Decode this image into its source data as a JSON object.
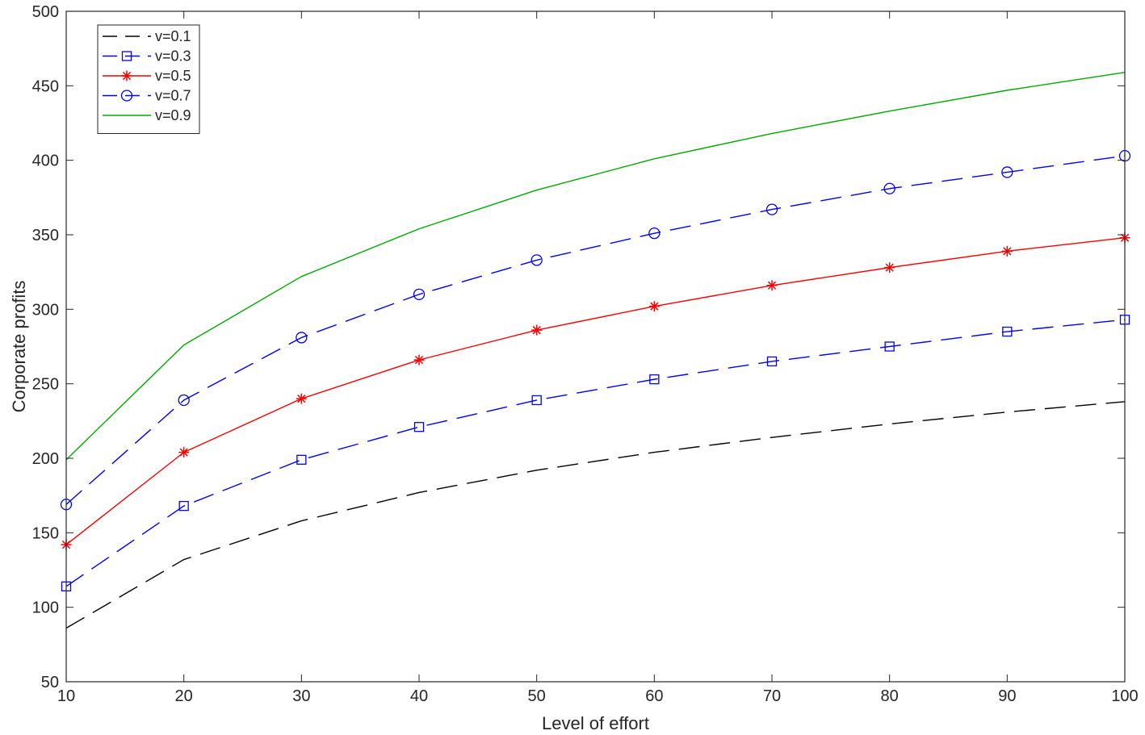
{
  "chart_data": {
    "type": "line",
    "title": "",
    "xlabel": "Level of effort",
    "ylabel": "Corporate profits",
    "xlim": [
      10,
      100
    ],
    "ylim": [
      50,
      500
    ],
    "xticks": [
      10,
      20,
      30,
      40,
      50,
      60,
      70,
      80,
      90,
      100
    ],
    "yticks": [
      50,
      100,
      150,
      200,
      250,
      300,
      350,
      400,
      450,
      500
    ],
    "grid": false,
    "legend_position": "top-left",
    "x": [
      10,
      20,
      30,
      40,
      50,
      60,
      70,
      80,
      90,
      100
    ],
    "series": [
      {
        "name": "v=0.1",
        "color": "#000000",
        "line_style": "dashed",
        "marker": "none",
        "values": [
          86,
          132,
          158,
          177,
          192,
          204,
          214,
          223,
          231,
          238
        ]
      },
      {
        "name": "v=0.3",
        "color": "#0000ff",
        "line_style": "dashed",
        "marker": "square",
        "values": [
          114,
          168,
          199,
          221,
          239,
          253,
          265,
          275,
          285,
          293
        ]
      },
      {
        "name": "v=0.5",
        "color": "#ff0000",
        "line_style": "solid",
        "marker": "asterisk",
        "values": [
          142,
          204,
          240,
          266,
          286,
          302,
          316,
          328,
          339,
          348
        ]
      },
      {
        "name": "v=0.7",
        "color": "#0000ff",
        "line_style": "dashed",
        "marker": "circle",
        "values": [
          169,
          239,
          281,
          310,
          333,
          351,
          367,
          381,
          392,
          403
        ]
      },
      {
        "name": "v=0.9",
        "color": "#00aa00",
        "line_style": "solid",
        "marker": "none",
        "values": [
          199,
          276,
          322,
          354,
          380,
          401,
          418,
          433,
          447,
          459
        ]
      }
    ]
  }
}
